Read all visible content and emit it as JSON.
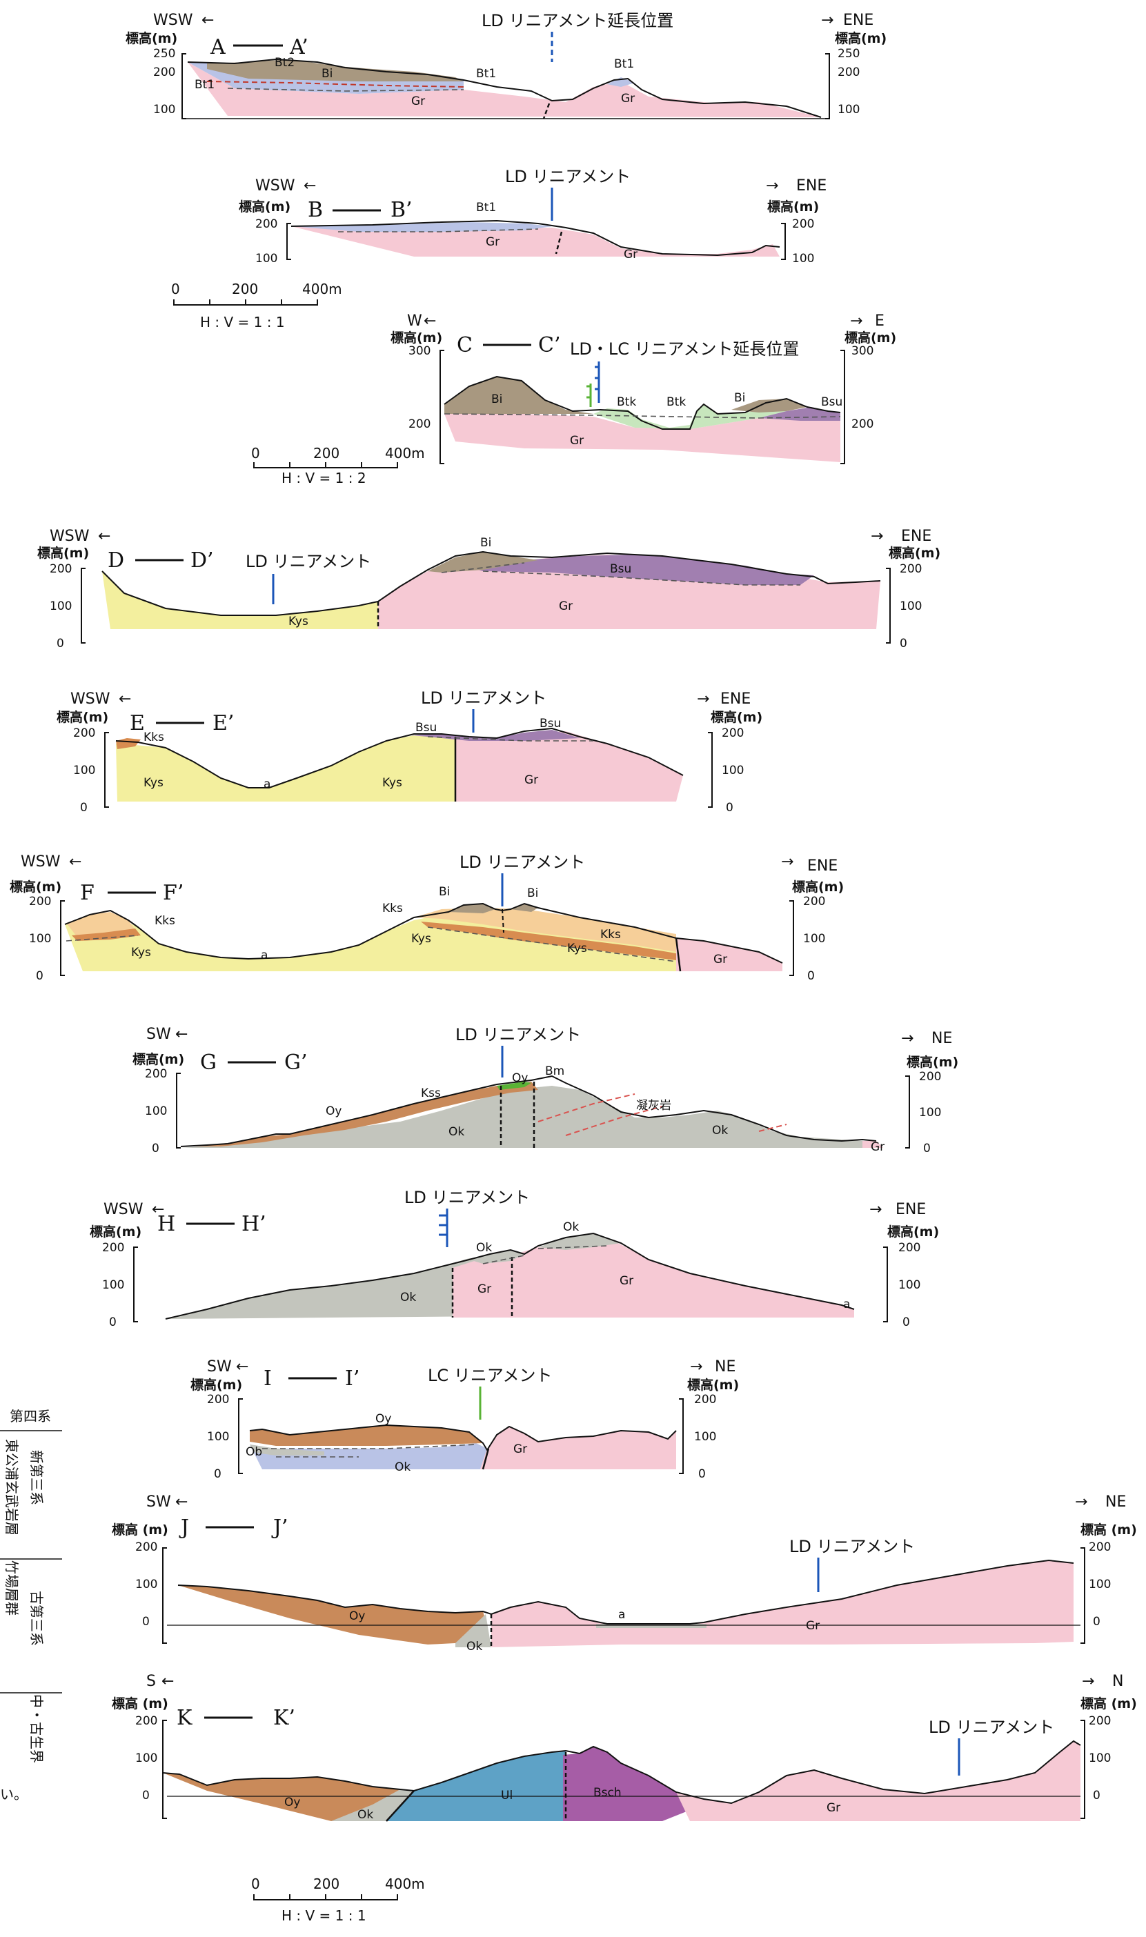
{
  "colors": {
    "Gr": "#f6c9d4",
    "Bi": "#a89880",
    "Bt": "#b9c3e6",
    "Kys": "#f3ef9e",
    "Kks": "#d88c50",
    "Bsu": "#a17fb0",
    "Btk": "#c7e6bd",
    "Ok": "#c3c5bd",
    "Oy": "#c98a5a",
    "Ul": "#5ea2c6",
    "Bsch": "#a65da6",
    "orange_lt": "#f6cf99",
    "lineament_blue": "#1b56b8",
    "lineament_green": "#59b335"
  },
  "legend_side": {
    "quaternary": "第四系",
    "neogene_upper": "新第三系",
    "neogene_lower": "東公浦玄武岩層",
    "paleogene_upper": "古第三系",
    "paleogene_lower": "竹場層群",
    "paleozoic": "中・古生界",
    "note": "い。"
  },
  "sections": [
    {
      "id": "A",
      "title_left": "A",
      "title_right": "A’",
      "dir_left": "WSW",
      "dir_right": "ENE",
      "elev_label": "標高(m)",
      "ticks": [
        "250",
        "200",
        "100"
      ],
      "lineament": "LD リニアメント延長位置",
      "labels": [
        "Bt2",
        "Bi",
        "Bt1",
        "Bt1",
        "Bt1",
        "Gr",
        "Gr"
      ]
    },
    {
      "id": "B",
      "title_left": "B",
      "title_right": "B’",
      "dir_left": "WSW",
      "dir_right": "ENE",
      "elev_label": "標高(m)",
      "ticks": [
        "200",
        "100"
      ],
      "lineament": "LD リニアメント",
      "labels": [
        "Bt1",
        "Gr",
        "Gr"
      ]
    },
    {
      "id": "C",
      "title_left": "C",
      "title_right": "C’",
      "dir_left": "W",
      "dir_right": "E",
      "elev_label": "標高(m)",
      "ticks": [
        "300",
        "200"
      ],
      "lineament": "LD・LC リニアメント延長位置",
      "labels": [
        "Bi",
        "Btk",
        "Btk",
        "Bi",
        "Bsu",
        "Gr"
      ]
    },
    {
      "id": "D",
      "title_left": "D",
      "title_right": "D’",
      "dir_left": "WSW",
      "dir_right": "ENE",
      "elev_label": "標高(m)",
      "ticks": [
        "200",
        "100",
        "0"
      ],
      "lineament": "LD リニアメント",
      "labels": [
        "Bi",
        "Bsu",
        "Gr",
        "Kys"
      ]
    },
    {
      "id": "E",
      "title_left": "E",
      "title_right": "E’",
      "dir_left": "WSW",
      "dir_right": "ENE",
      "elev_label": "標高(m)",
      "ticks": [
        "200",
        "100",
        "0"
      ],
      "lineament": "LD リニアメント",
      "labels": [
        "Kks",
        "Kys",
        "a",
        "Kys",
        "Bsu",
        "Bsu",
        "Gr"
      ]
    },
    {
      "id": "F",
      "title_left": "F",
      "title_right": "F’",
      "dir_left": "WSW",
      "dir_right": "ENE",
      "elev_label": "標高(m)",
      "ticks": [
        "200",
        "100",
        "0"
      ],
      "lineament": "LD リニアメント",
      "labels": [
        "Kks",
        "Kys",
        "a",
        "Kks",
        "Bi",
        "Bi",
        "Kys",
        "Kks",
        "Kys",
        "Gr"
      ]
    },
    {
      "id": "G",
      "title_left": "G",
      "title_right": "G’",
      "dir_left": "SW",
      "dir_right": "NE",
      "elev_label": "標高(m)",
      "ticks": [
        "200",
        "100",
        "0"
      ],
      "lineament": "LD リニアメント",
      "labels": [
        "Oy",
        "Kss",
        "Oy",
        "Bm",
        "凝灰岩",
        "Ok",
        "Ok",
        "Gr"
      ]
    },
    {
      "id": "H",
      "title_left": "H",
      "title_right": "H’",
      "dir_left": "WSW",
      "dir_right": "ENE",
      "elev_label": "標高(m)",
      "ticks": [
        "200",
        "100",
        "0"
      ],
      "lineament": "LD リニアメント",
      "labels": [
        "Ok",
        "Ok",
        "Ok",
        "Gr",
        "Gr",
        "a"
      ]
    },
    {
      "id": "I",
      "title_left": "I",
      "title_right": "I’",
      "dir_left": "SW",
      "dir_right": "NE",
      "elev_label": "標高(m)",
      "ticks": [
        "200",
        "100",
        "0"
      ],
      "lineament": "LC リニアメント",
      "labels": [
        "Oy",
        "Ob",
        "Ok",
        "Gr"
      ]
    },
    {
      "id": "J",
      "title_left": "J",
      "title_right": "J’",
      "dir_left": "SW",
      "dir_right": "NE",
      "elev_label": "標高 (m)",
      "ticks": [
        "200",
        "100",
        "0"
      ],
      "lineament": "LD リニアメント",
      "labels": [
        "Oy",
        "Ok",
        "a",
        "Gr"
      ]
    },
    {
      "id": "K",
      "title_left": "K",
      "title_right": "K’",
      "dir_left": "S",
      "dir_right": "N",
      "elev_label": "標高 (m)",
      "ticks": [
        "200",
        "100",
        "0"
      ],
      "lineament": "LD リニアメント",
      "labels": [
        "Oy",
        "Ok",
        "Ul",
        "Bsch",
        "Gr"
      ]
    }
  ],
  "scales": [
    {
      "ticks": [
        "0",
        "200",
        "400m"
      ],
      "ratio": "H : V = 1 : 1"
    },
    {
      "ticks": [
        "0",
        "200",
        "400m"
      ],
      "ratio": "H : V = 1 : 2"
    },
    {
      "ticks": [
        "0",
        "200",
        "400m"
      ],
      "ratio": "H : V = 1 : 1"
    }
  ]
}
